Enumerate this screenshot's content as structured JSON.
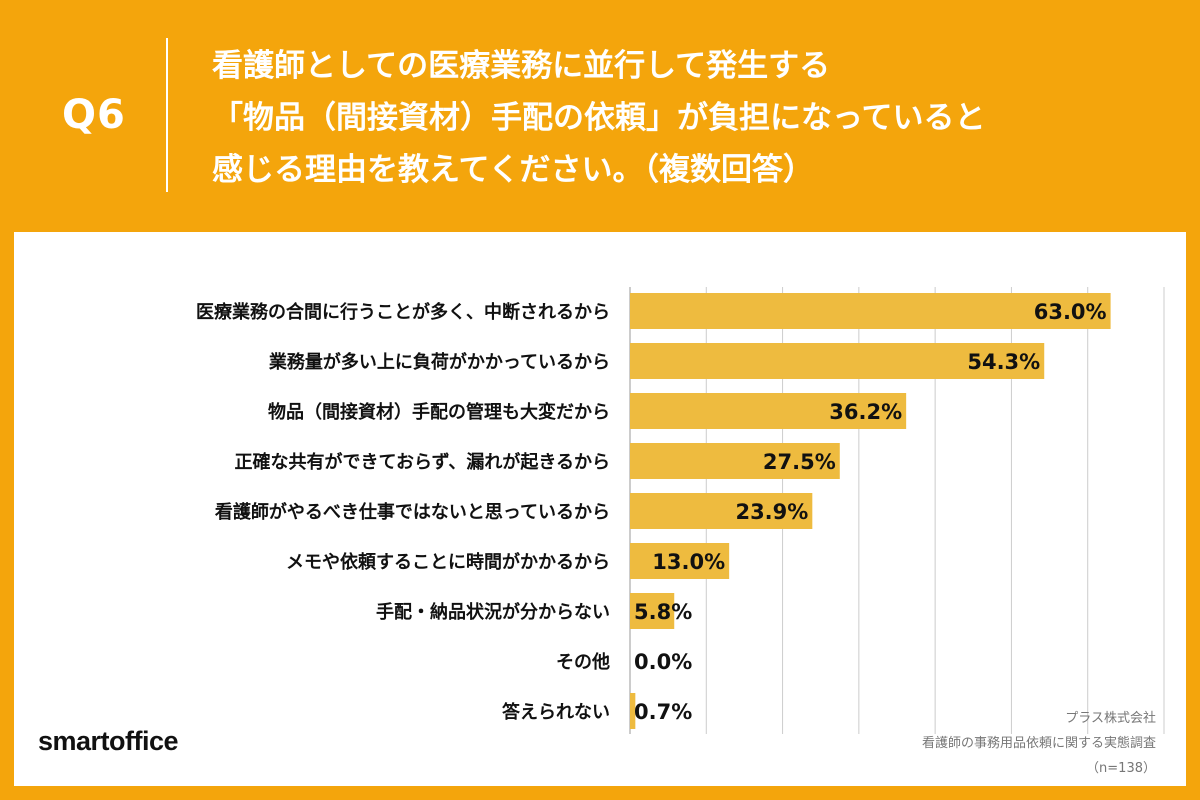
{
  "header": {
    "question_no": "Q6",
    "question_lines": [
      "看護師としての医療業務に並行して発生する",
      "「物品（間接資材）手配の依頼」が負担になっていると",
      "感じる理由を教えてください。（複数回答）"
    ]
  },
  "footer": {
    "brand": "smartoffice",
    "source_company": "プラス株式会社",
    "survey_name": "看護師の事務用品依頼に関する実態調査",
    "sample": "（n=138）"
  },
  "colors": {
    "background": "#F4A50C",
    "bar": "#EEBB3F",
    "grid": "#CCCCCC"
  },
  "chart_data": {
    "type": "bar",
    "orientation": "horizontal",
    "categories": [
      "医療業務の合間に行うことが多く、中断されるから",
      "業務量が多い上に負荷がかかっているから",
      "物品（間接資材）手配の管理も大変だから",
      "正確な共有ができておらず、漏れが起きるから",
      "看護師がやるべき仕事ではないと思っているから",
      "メモや依頼することに時間がかかるから",
      "手配・納品状況が分からない",
      "その他",
      "答えられない"
    ],
    "values": [
      63.0,
      54.3,
      36.2,
      27.5,
      23.9,
      13.0,
      5.8,
      0.0,
      0.7
    ],
    "value_labels": [
      "63.0%",
      "54.3%",
      "36.2%",
      "27.5%",
      "23.9%",
      "13.0%",
      "5.8%",
      "0.0%",
      "0.7%"
    ],
    "xlim": [
      0,
      70
    ],
    "grid": true
  }
}
